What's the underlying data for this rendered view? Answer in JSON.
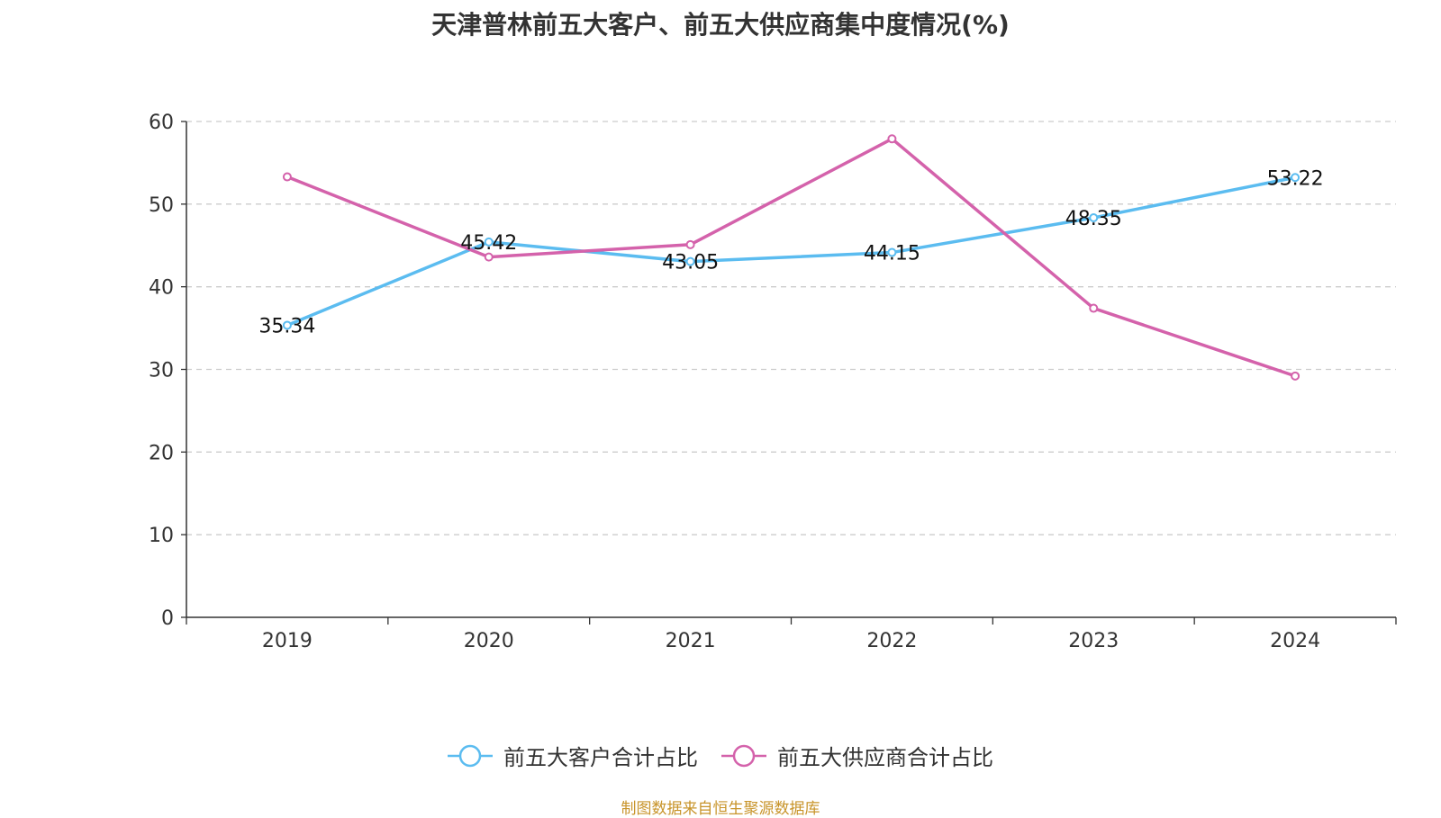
{
  "chart_data": {
    "type": "line",
    "title": "天津普林前五大客户、前五大供应商集中度情况(%)",
    "categories": [
      "2019",
      "2020",
      "2021",
      "2022",
      "2023",
      "2024"
    ],
    "ylim": [
      0,
      60
    ],
    "yticks": [
      "0",
      "10",
      "20",
      "30",
      "40",
      "50",
      "60"
    ],
    "grid": true,
    "legend_position": "bottom",
    "series": [
      {
        "name": "前五大客户合计占比",
        "color": "#5bbcf0",
        "values": [
          35.34,
          45.42,
          43.05,
          44.15,
          48.35,
          53.22
        ],
        "labels": [
          "35.34",
          "45.42",
          "43.05",
          "44.15",
          "48.35",
          "53.22"
        ]
      },
      {
        "name": "前五大供应商合计占比",
        "color": "#d462ab",
        "values": [
          53.3,
          43.6,
          45.1,
          57.9,
          37.4,
          29.2
        ],
        "labels": []
      }
    ]
  },
  "source_note": "制图数据来自恒生聚源数据库"
}
